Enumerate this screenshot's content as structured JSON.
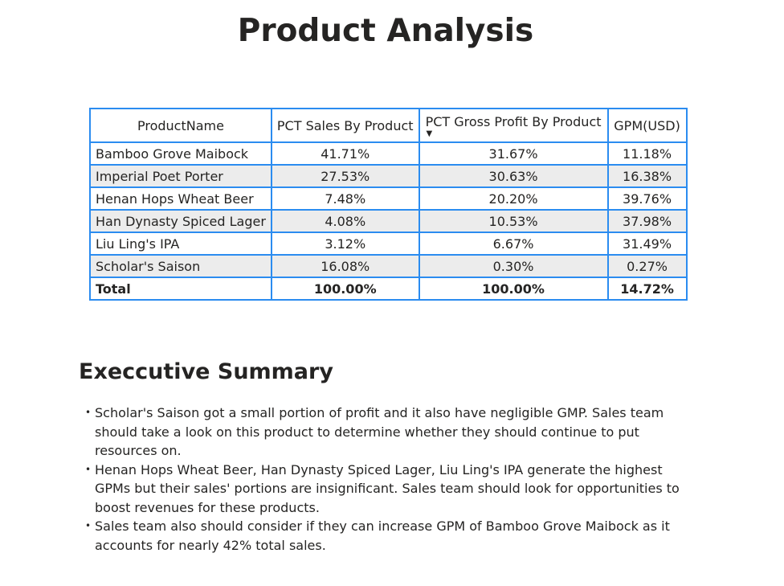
{
  "page": {
    "title": "Product Analysis"
  },
  "table": {
    "headers": [
      "ProductName",
      "PCT Sales By Product",
      "PCT Gross Profit By Product",
      "GPM(USD)"
    ],
    "sorted_column": "PCT Gross Profit By Product",
    "sort_direction": "descending",
    "sort_icon": "triangle-down-icon",
    "rows": [
      {
        "name": "Bamboo Grove Maibock",
        "sales": "41.71%",
        "gp": "31.67%",
        "gpm": "11.18%"
      },
      {
        "name": "Imperial Poet Porter",
        "sales": "27.53%",
        "gp": "30.63%",
        "gpm": "16.38%"
      },
      {
        "name": "Henan Hops Wheat Beer",
        "sales": "7.48%",
        "gp": "20.20%",
        "gpm": "39.76%"
      },
      {
        "name": "Han Dynasty Spiced Lager",
        "sales": "4.08%",
        "gp": "10.53%",
        "gpm": "37.98%"
      },
      {
        "name": "Liu Ling's IPA",
        "sales": "3.12%",
        "gp": "6.67%",
        "gpm": "31.49%"
      },
      {
        "name": "Scholar's Saison",
        "sales": "16.08%",
        "gp": "0.30%",
        "gpm": "0.27%"
      }
    ],
    "total": {
      "name": "Total",
      "sales": "100.00%",
      "gp": "100.00%",
      "gpm": "14.72%"
    },
    "border_color": "#2b8cf0",
    "alt_row_color": "#ececec"
  },
  "summary": {
    "title": "Execcutive Summary",
    "bullets": [
      "Scholar's Saison got a small portion of profit and it also have negligible GMP. Sales team should take a look on this product to determine whether they should continue to put resources on.",
      "Henan Hops Wheat Beer, Han Dynasty Spiced Lager, Liu Ling's IPA generate the highest GPMs but their sales' portions are insignificant. Sales team should look for opportunities to boost revenues for these products.",
      "Sales team also should consider if they can increase GPM of Bamboo Grove Maibock as it accounts for nearly 42% total sales."
    ]
  }
}
